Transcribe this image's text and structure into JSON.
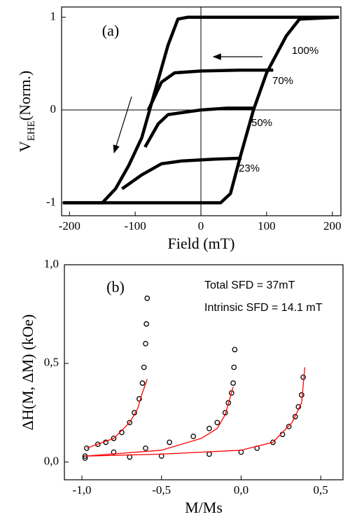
{
  "chart_data": [
    {
      "type": "line",
      "panel_label": "(a)",
      "xlabel": "Field (mT)",
      "ylabel": [
        "V",
        "EHE",
        "(Norm.)"
      ],
      "xlim": [
        -212,
        213
      ],
      "ylim": [
        -1.14,
        1.11
      ],
      "xticks": [
        -200,
        -100,
        0,
        100,
        200
      ],
      "yticks": [
        -1,
        0,
        1
      ],
      "zero_lines": true,
      "series": [
        {
          "color": "#000000",
          "style": "line",
          "x": [
            210,
            -20,
            -35,
            -50,
            -70,
            -90,
            -110,
            -130,
            -150,
            -210
          ],
          "values": [
            1,
            1,
            0.98,
            0.7,
            0.2,
            -0.3,
            -0.6,
            -0.85,
            -1,
            -1
          ]
        },
        {
          "color": "#000000",
          "style": "line",
          "x": [
            -210,
            30,
            45,
            60,
            80,
            100,
            130,
            150,
            210
          ],
          "values": [
            -1,
            -1,
            -0.9,
            -0.5,
            0,
            0.4,
            0.8,
            0.98,
            1
          ]
        },
        {
          "color": "#000000",
          "style": "line",
          "x": [
            110,
            60,
            0,
            -40,
            -60,
            -80
          ],
          "values": [
            0.43,
            0.43,
            0.42,
            0.4,
            0.3,
            0.0
          ]
        },
        {
          "color": "#000000",
          "style": "line",
          "x": [
            82,
            40,
            0,
            -50,
            -65,
            -85
          ],
          "values": [
            0.02,
            0.02,
            0.0,
            -0.05,
            -0.15,
            -0.4
          ]
        },
        {
          "color": "#000000",
          "style": "line",
          "x": [
            62,
            20,
            -30,
            -60,
            -90,
            -120
          ],
          "values": [
            -0.52,
            -0.53,
            -0.55,
            -0.58,
            -0.7,
            -0.85
          ]
        }
      ],
      "annotations": [
        "100%",
        "70%",
        "50%",
        "23%"
      ]
    },
    {
      "type": "line",
      "panel_label": "(b)",
      "xlabel": "M/Ms",
      "ylabel": [
        "ΔH(M, ΔM) (kOe)"
      ],
      "xlim": [
        -1.11,
        0.64
      ],
      "ylim": [
        -0.09,
        1.0
      ],
      "xticks": [
        {
          "value": -1.0,
          "label": "-1,0"
        },
        {
          "value": -0.5,
          "label": "-0,5"
        },
        {
          "value": 0.0,
          "label": "0,0"
        },
        {
          "value": 0.5,
          "label": "0,5"
        }
      ],
      "yticks": [
        {
          "value": 0.0,
          "label": "0,0"
        },
        {
          "value": 0.5,
          "label": "0,5"
        },
        {
          "value": 1.0,
          "label": "1,0"
        }
      ],
      "zero_lines": false,
      "series": [
        {
          "color": "#000000",
          "style": "markers",
          "x": [
            -0.97,
            -0.9,
            -0.85,
            -0.8,
            -0.75,
            -0.7,
            -0.67,
            -0.64,
            -0.62,
            -0.61,
            -0.6,
            -0.595,
            -0.59
          ],
          "values": [
            0.07,
            0.09,
            0.1,
            0.12,
            0.15,
            0.2,
            0.25,
            0.32,
            0.4,
            0.48,
            0.6,
            0.7,
            0.83
          ]
        },
        {
          "color": "#ff0000",
          "style": "line",
          "x": [
            -0.97,
            -0.8,
            -0.7,
            -0.65,
            -0.62,
            -0.59
          ],
          "values": [
            0.07,
            0.12,
            0.2,
            0.27,
            0.35,
            0.42
          ]
        },
        {
          "color": "#000000",
          "style": "markers",
          "x": [
            -0.98,
            -0.8,
            -0.6,
            -0.45,
            -0.3,
            -0.2,
            -0.15,
            -0.1,
            -0.08,
            -0.06,
            -0.05,
            -0.045,
            -0.04
          ],
          "values": [
            0.03,
            0.05,
            0.07,
            0.1,
            0.13,
            0.17,
            0.2,
            0.25,
            0.3,
            0.35,
            0.4,
            0.48,
            0.57
          ]
        },
        {
          "color": "#ff0000",
          "style": "line",
          "x": [
            -0.98,
            -0.5,
            -0.25,
            -0.15,
            -0.1,
            -0.05
          ],
          "values": [
            0.03,
            0.06,
            0.12,
            0.17,
            0.24,
            0.38
          ]
        },
        {
          "color": "#000000",
          "style": "markers",
          "x": [
            -0.98,
            -0.7,
            -0.5,
            -0.2,
            0.0,
            0.1,
            0.2,
            0.26,
            0.3,
            0.34,
            0.36,
            0.38,
            0.39
          ],
          "values": [
            0.02,
            0.025,
            0.03,
            0.04,
            0.05,
            0.07,
            0.1,
            0.14,
            0.18,
            0.23,
            0.28,
            0.34,
            0.43
          ]
        },
        {
          "color": "#ff0000",
          "style": "line",
          "x": [
            -0.98,
            -0.5,
            0.0,
            0.2,
            0.32,
            0.38,
            0.4
          ],
          "values": [
            0.03,
            0.04,
            0.06,
            0.1,
            0.2,
            0.3,
            0.48
          ]
        }
      ],
      "annotations": [
        "Total SFD = 37mT",
        "Intrinsic SFD = 14.1 mT"
      ]
    }
  ]
}
